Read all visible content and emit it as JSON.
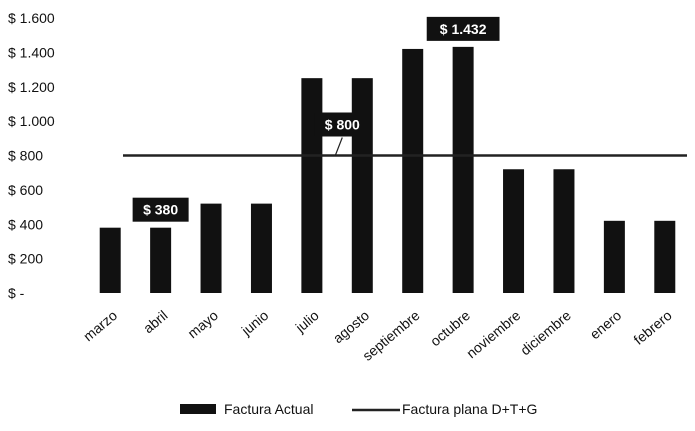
{
  "chart_data": {
    "type": "bar",
    "categories": [
      "marzo",
      "abril",
      "mayo",
      "junio",
      "julio",
      "agosto",
      "septiembre",
      "octubre",
      "noviembre",
      "diciembre",
      "enero",
      "febrero"
    ],
    "series": [
      {
        "name": "Factura Actual",
        "type": "bar",
        "values": [
          380,
          380,
          520,
          520,
          1250,
          1250,
          1420,
          1432,
          720,
          720,
          420,
          420
        ]
      },
      {
        "name": "Factura plana D+T+G",
        "type": "line",
        "values": [
          800,
          800,
          800,
          800,
          800,
          800,
          800,
          800,
          800,
          800,
          800,
          800
        ]
      }
    ],
    "ytick_labels": [
      "$ -",
      "$ 200",
      "$ 400",
      "$ 600",
      "$ 800",
      "$ 1.000",
      "$ 1.200",
      "$ 1.400",
      "$ 1.600"
    ],
    "ylim": [
      0,
      1600
    ],
    "annotations": [
      {
        "text": "$ 380",
        "category": "abril",
        "value": 380
      },
      {
        "text": "$ 800",
        "category": "agosto",
        "value": 800
      },
      {
        "text": "$ 1.432",
        "category": "octubre",
        "value": 1432
      }
    ],
    "legend_position": "bottom",
    "grid": false,
    "colors": {
      "bar": "#111111",
      "line": "#222222",
      "callout_bg": "#111111",
      "callout_text": "#ffffff"
    }
  }
}
